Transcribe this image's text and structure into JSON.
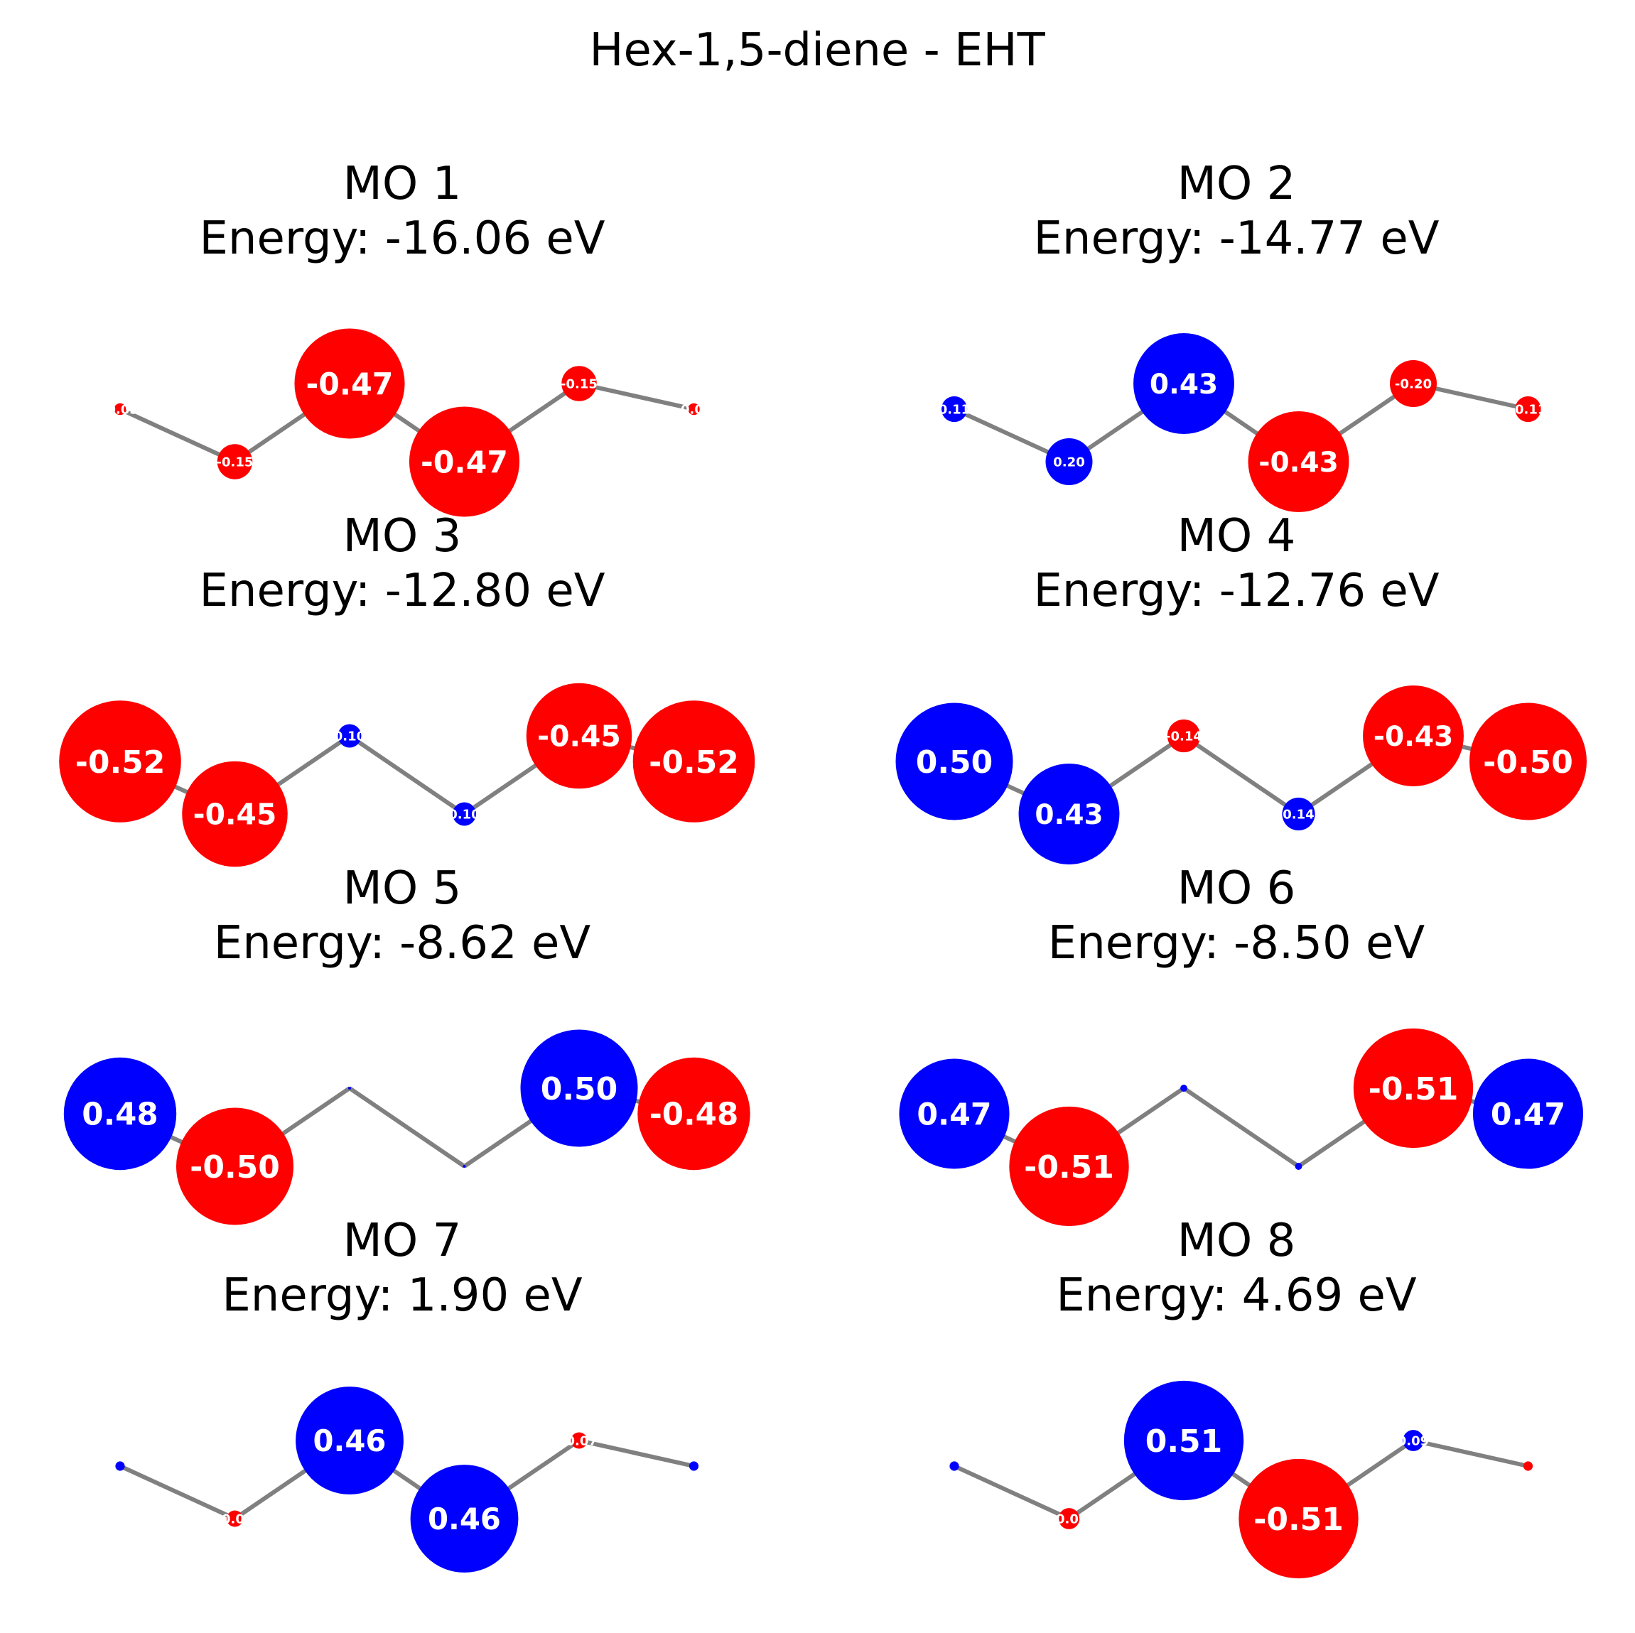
{
  "title": "Hex-1,5-diene - EHT",
  "colors": {
    "positive": "#0000ff",
    "negative": "#ff0000",
    "bond": "#808080",
    "label": "#ffffff"
  },
  "orbitals": [
    {
      "name": "MO 1",
      "energy_text": "Energy: -16.06 eV",
      "coefficients": [
        -0.05,
        -0.15,
        -0.47,
        -0.47,
        -0.15,
        -0.05
      ],
      "labels": [
        "-0.05",
        "-0.15",
        "-0.47",
        "-0.47",
        "-0.15",
        "-0.05"
      ]
    },
    {
      "name": "MO 2",
      "energy_text": "Energy: -14.77 eV",
      "coefficients": [
        0.11,
        0.2,
        0.43,
        -0.43,
        -0.2,
        -0.11
      ],
      "labels": [
        "0.11",
        "0.20",
        "0.43",
        "-0.43",
        "-0.20",
        "-0.11"
      ]
    },
    {
      "name": "MO 3",
      "energy_text": "Energy: -12.80 eV",
      "coefficients": [
        -0.52,
        -0.45,
        0.1,
        0.1,
        -0.45,
        -0.52
      ],
      "labels": [
        "-0.52",
        "-0.45",
        "0.10",
        "0.10",
        "-0.45",
        "-0.52"
      ]
    },
    {
      "name": "MO 4",
      "energy_text": "Energy: -12.76 eV",
      "coefficients": [
        0.5,
        0.43,
        -0.14,
        0.14,
        -0.43,
        -0.5
      ],
      "labels": [
        "0.50",
        "0.43",
        "-0.14",
        "0.14",
        "-0.43",
        "-0.50"
      ]
    },
    {
      "name": "MO 5",
      "energy_text": "Energy: -8.62 eV",
      "coefficients": [
        0.48,
        -0.5,
        0.0,
        -0.0,
        0.5,
        -0.48
      ],
      "labels": [
        "0.48",
        "-0.50",
        "",
        "",
        "0.50",
        "-0.48"
      ]
    },
    {
      "name": "MO 6",
      "energy_text": "Energy: -8.50 eV",
      "coefficients": [
        0.47,
        -0.51,
        0.03,
        0.03,
        -0.51,
        0.47
      ],
      "labels": [
        "0.47",
        "-0.51",
        "",
        "",
        "-0.51",
        "0.47"
      ]
    },
    {
      "name": "MO 7",
      "energy_text": "Energy: 1.90 eV",
      "coefficients": [
        0.04,
        -0.07,
        0.46,
        0.46,
        -0.07,
        0.04
      ],
      "labels": [
        "",
        "-0.07",
        "0.46",
        "0.46",
        "-0.07",
        ""
      ]
    },
    {
      "name": "MO 8",
      "energy_text": "Energy: 4.69 eV",
      "coefficients": [
        0.04,
        -0.09,
        0.51,
        -0.51,
        0.09,
        -0.04
      ],
      "labels": [
        "",
        "-0.09",
        "0.51",
        "-0.51",
        "0.09",
        ""
      ]
    }
  ]
}
